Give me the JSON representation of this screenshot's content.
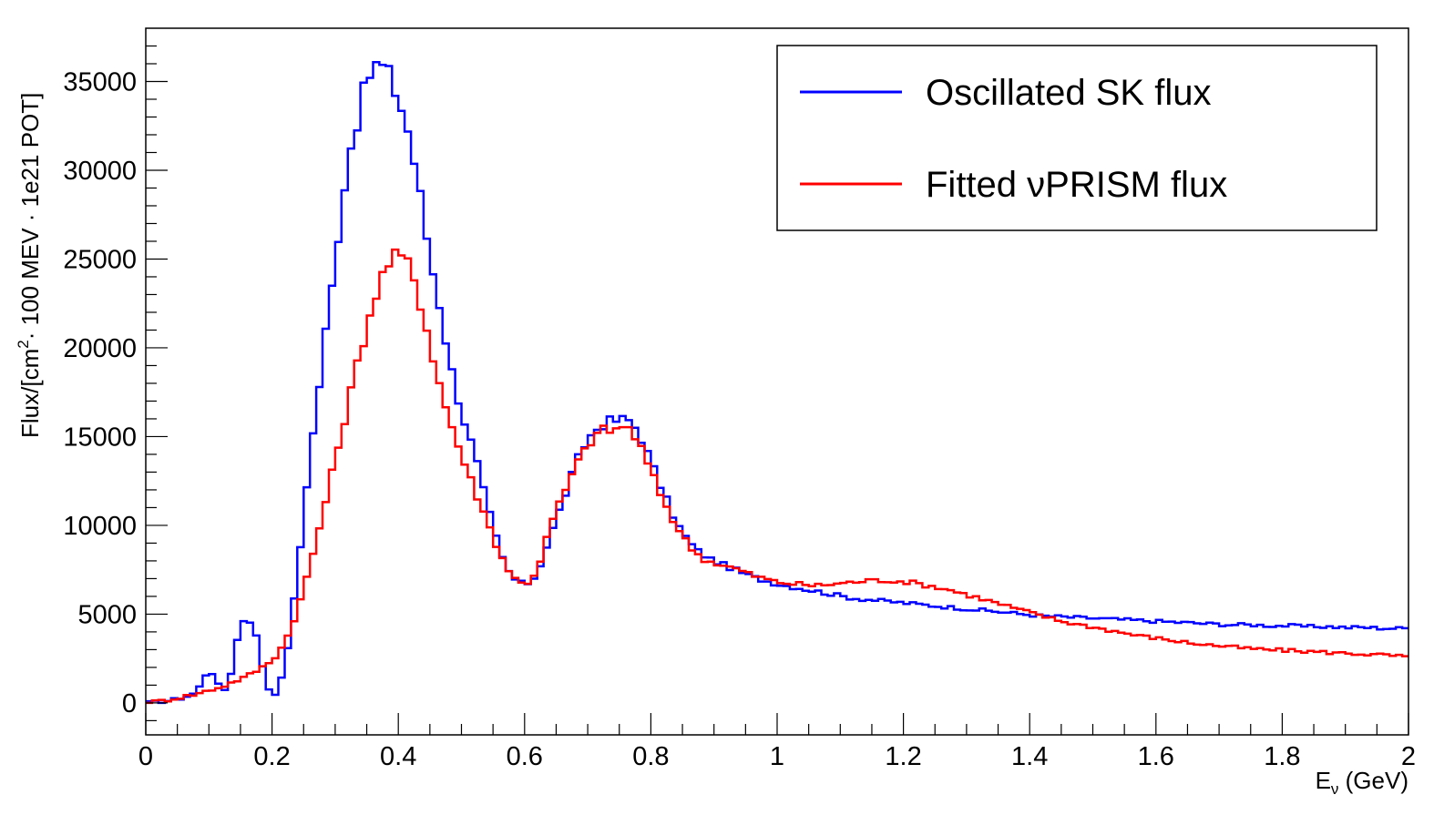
{
  "chart_data": {
    "type": "line",
    "style": "step",
    "title": "",
    "xlabel_main": "E",
    "xlabel_sub": "ν",
    "xlabel_unit": " (GeV)",
    "ylabel_pre": "Flux/[cm",
    "ylabel_sup": "2",
    "ylabel_post": "· 100 MEV · 1e21 POT]",
    "xlim": [
      0,
      2
    ],
    "ylim": [
      -1800,
      38000
    ],
    "x_ticks": [
      0,
      0.2,
      0.4,
      0.6,
      0.8,
      1,
      1.2,
      1.4,
      1.6,
      1.8,
      2
    ],
    "x_tick_labels": [
      "0",
      "0.2",
      "0.4",
      "0.6",
      "0.8",
      "1",
      "1.2",
      "1.4",
      "1.6",
      "1.8",
      "2"
    ],
    "y_ticks": [
      0,
      5000,
      10000,
      15000,
      20000,
      25000,
      30000,
      35000
    ],
    "y_tick_labels": [
      "0",
      "5000",
      "10000",
      "15000",
      "20000",
      "25000",
      "30000",
      "35000"
    ],
    "legend_position": "top-right",
    "series": [
      {
        "name": "Oscillated SK flux",
        "color": "#0000ff",
        "points": [
          [
            0.0,
            0
          ],
          [
            0.02,
            50
          ],
          [
            0.04,
            150
          ],
          [
            0.06,
            300
          ],
          [
            0.08,
            600
          ],
          [
            0.09,
            1200
          ],
          [
            0.1,
            2000
          ],
          [
            0.11,
            1400
          ],
          [
            0.12,
            600
          ],
          [
            0.13,
            900
          ],
          [
            0.14,
            2500
          ],
          [
            0.15,
            4600
          ],
          [
            0.16,
            4700
          ],
          [
            0.17,
            4500
          ],
          [
            0.18,
            3000
          ],
          [
            0.19,
            1200
          ],
          [
            0.2,
            400
          ],
          [
            0.21,
            700
          ],
          [
            0.22,
            2000
          ],
          [
            0.23,
            4300
          ],
          [
            0.24,
            7300
          ],
          [
            0.25,
            10300
          ],
          [
            0.26,
            14300
          ],
          [
            0.27,
            16000
          ],
          [
            0.28,
            19800
          ],
          [
            0.29,
            22000
          ],
          [
            0.3,
            24800
          ],
          [
            0.31,
            28000
          ],
          [
            0.32,
            30500
          ],
          [
            0.33,
            32200
          ],
          [
            0.34,
            33500
          ],
          [
            0.35,
            35000
          ],
          [
            0.36,
            35800
          ],
          [
            0.37,
            36000
          ],
          [
            0.38,
            35600
          ],
          [
            0.39,
            35000
          ],
          [
            0.4,
            34000
          ],
          [
            0.41,
            33000
          ],
          [
            0.42,
            31500
          ],
          [
            0.43,
            29500
          ],
          [
            0.44,
            27500
          ],
          [
            0.45,
            25000
          ],
          [
            0.46,
            23500
          ],
          [
            0.47,
            21500
          ],
          [
            0.48,
            19500
          ],
          [
            0.49,
            17800
          ],
          [
            0.5,
            16500
          ],
          [
            0.51,
            15200
          ],
          [
            0.52,
            14200
          ],
          [
            0.53,
            12700
          ],
          [
            0.54,
            11200
          ],
          [
            0.55,
            10000
          ],
          [
            0.56,
            8600
          ],
          [
            0.57,
            7700
          ],
          [
            0.58,
            7100
          ],
          [
            0.59,
            6800
          ],
          [
            0.6,
            6700
          ],
          [
            0.61,
            6800
          ],
          [
            0.62,
            7300
          ],
          [
            0.63,
            8300
          ],
          [
            0.64,
            9300
          ],
          [
            0.65,
            10300
          ],
          [
            0.66,
            11300
          ],
          [
            0.67,
            12300
          ],
          [
            0.68,
            13300
          ],
          [
            0.69,
            14200
          ],
          [
            0.7,
            14800
          ],
          [
            0.71,
            15300
          ],
          [
            0.72,
            15600
          ],
          [
            0.73,
            15800
          ],
          [
            0.74,
            15900
          ],
          [
            0.75,
            15900
          ],
          [
            0.76,
            16000
          ],
          [
            0.77,
            15800
          ],
          [
            0.78,
            15300
          ],
          [
            0.79,
            14500
          ],
          [
            0.8,
            13600
          ],
          [
            0.81,
            12700
          ],
          [
            0.82,
            11800
          ],
          [
            0.83,
            11000
          ],
          [
            0.84,
            10200
          ],
          [
            0.85,
            9600
          ],
          [
            0.86,
            9100
          ],
          [
            0.87,
            8700
          ],
          [
            0.88,
            8400
          ],
          [
            0.89,
            8200
          ],
          [
            0.9,
            8000
          ],
          [
            0.92,
            7700
          ],
          [
            0.94,
            7400
          ],
          [
            0.96,
            7100
          ],
          [
            0.98,
            6900
          ],
          [
            1.0,
            6700
          ],
          [
            1.03,
            6500
          ],
          [
            1.06,
            6300
          ],
          [
            1.09,
            6100
          ],
          [
            1.12,
            5900
          ],
          [
            1.15,
            5800
          ],
          [
            1.18,
            5700
          ],
          [
            1.21,
            5600
          ],
          [
            1.24,
            5500
          ],
          [
            1.27,
            5400
          ],
          [
            1.3,
            5300
          ],
          [
            1.33,
            5200
          ],
          [
            1.36,
            5100
          ],
          [
            1.39,
            5000
          ],
          [
            1.42,
            4900
          ],
          [
            1.45,
            4850
          ],
          [
            1.48,
            4800
          ],
          [
            1.51,
            4750
          ],
          [
            1.54,
            4700
          ],
          [
            1.57,
            4650
          ],
          [
            1.6,
            4600
          ],
          [
            1.63,
            4550
          ],
          [
            1.66,
            4500
          ],
          [
            1.69,
            4450
          ],
          [
            1.72,
            4400
          ],
          [
            1.75,
            4400
          ],
          [
            1.78,
            4350
          ],
          [
            1.81,
            4350
          ],
          [
            1.84,
            4300
          ],
          [
            1.87,
            4300
          ],
          [
            1.9,
            4250
          ],
          [
            1.93,
            4250
          ],
          [
            1.96,
            4200
          ],
          [
            1.98,
            4200
          ],
          [
            2.0,
            4200
          ]
        ]
      },
      {
        "name": "Fitted νPRISM flux",
        "color": "#ff0000",
        "points": [
          [
            0.0,
            0
          ],
          [
            0.02,
            100
          ],
          [
            0.04,
            200
          ],
          [
            0.06,
            350
          ],
          [
            0.08,
            500
          ],
          [
            0.1,
            700
          ],
          [
            0.12,
            900
          ],
          [
            0.14,
            1200
          ],
          [
            0.16,
            1500
          ],
          [
            0.18,
            1900
          ],
          [
            0.2,
            2400
          ],
          [
            0.21,
            2800
          ],
          [
            0.22,
            3400
          ],
          [
            0.23,
            4200
          ],
          [
            0.24,
            5200
          ],
          [
            0.25,
            6400
          ],
          [
            0.26,
            7700
          ],
          [
            0.27,
            9100
          ],
          [
            0.28,
            10600
          ],
          [
            0.29,
            12100
          ],
          [
            0.3,
            13700
          ],
          [
            0.31,
            15200
          ],
          [
            0.32,
            16800
          ],
          [
            0.33,
            18300
          ],
          [
            0.34,
            19800
          ],
          [
            0.35,
            21200
          ],
          [
            0.36,
            22500
          ],
          [
            0.37,
            23600
          ],
          [
            0.38,
            24500
          ],
          [
            0.39,
            25000
          ],
          [
            0.4,
            25200
          ],
          [
            0.41,
            25000
          ],
          [
            0.42,
            24400
          ],
          [
            0.43,
            23300
          ],
          [
            0.44,
            21800
          ],
          [
            0.45,
            20300
          ],
          [
            0.46,
            18700
          ],
          [
            0.47,
            17300
          ],
          [
            0.48,
            16100
          ],
          [
            0.49,
            15000
          ],
          [
            0.5,
            14000
          ],
          [
            0.51,
            13000
          ],
          [
            0.52,
            12100
          ],
          [
            0.53,
            11200
          ],
          [
            0.54,
            10300
          ],
          [
            0.55,
            9400
          ],
          [
            0.56,
            8500
          ],
          [
            0.57,
            7800
          ],
          [
            0.58,
            7200
          ],
          [
            0.59,
            6800
          ],
          [
            0.6,
            6700
          ],
          [
            0.61,
            6900
          ],
          [
            0.62,
            7500
          ],
          [
            0.63,
            8600
          ],
          [
            0.64,
            9900
          ],
          [
            0.65,
            10800
          ],
          [
            0.66,
            11600
          ],
          [
            0.67,
            12400
          ],
          [
            0.68,
            13200
          ],
          [
            0.69,
            13900
          ],
          [
            0.7,
            14500
          ],
          [
            0.71,
            15000
          ],
          [
            0.72,
            15300
          ],
          [
            0.73,
            15400
          ],
          [
            0.74,
            15300
          ],
          [
            0.75,
            15500
          ],
          [
            0.76,
            15600
          ],
          [
            0.77,
            15300
          ],
          [
            0.78,
            14700
          ],
          [
            0.79,
            13900
          ],
          [
            0.8,
            13000
          ],
          [
            0.81,
            12200
          ],
          [
            0.82,
            11400
          ],
          [
            0.83,
            10700
          ],
          [
            0.84,
            10000
          ],
          [
            0.85,
            9400
          ],
          [
            0.86,
            8900
          ],
          [
            0.87,
            8500
          ],
          [
            0.88,
            8200
          ],
          [
            0.89,
            8000
          ],
          [
            0.9,
            7900
          ],
          [
            0.92,
            7700
          ],
          [
            0.94,
            7500
          ],
          [
            0.96,
            7200
          ],
          [
            0.98,
            7000
          ],
          [
            1.0,
            6800
          ],
          [
            1.03,
            6700
          ],
          [
            1.06,
            6600
          ],
          [
            1.09,
            6700
          ],
          [
            1.12,
            6800
          ],
          [
            1.15,
            6900
          ],
          [
            1.18,
            6900
          ],
          [
            1.21,
            6800
          ],
          [
            1.24,
            6600
          ],
          [
            1.27,
            6400
          ],
          [
            1.3,
            6100
          ],
          [
            1.33,
            5800
          ],
          [
            1.36,
            5500
          ],
          [
            1.39,
            5200
          ],
          [
            1.42,
            4900
          ],
          [
            1.45,
            4600
          ],
          [
            1.48,
            4400
          ],
          [
            1.51,
            4200
          ],
          [
            1.54,
            4000
          ],
          [
            1.57,
            3800
          ],
          [
            1.6,
            3650
          ],
          [
            1.63,
            3500
          ],
          [
            1.66,
            3350
          ],
          [
            1.69,
            3250
          ],
          [
            1.72,
            3150
          ],
          [
            1.75,
            3050
          ],
          [
            1.78,
            3000
          ],
          [
            1.81,
            2950
          ],
          [
            1.84,
            2900
          ],
          [
            1.87,
            2850
          ],
          [
            1.9,
            2800
          ],
          [
            1.93,
            2750
          ],
          [
            1.96,
            2700
          ],
          [
            1.98,
            2650
          ],
          [
            2.0,
            2600
          ]
        ]
      }
    ]
  }
}
